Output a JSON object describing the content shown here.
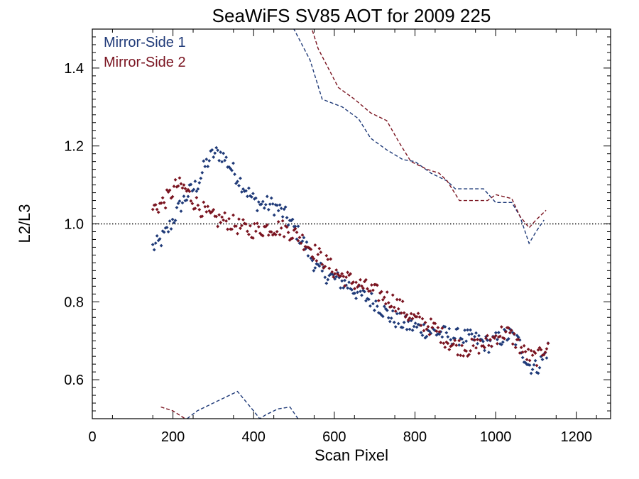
{
  "chart_data": {
    "type": "scatter",
    "title": "SeaWiFS SV85 AOT for 2009 225",
    "xlabel": "Scan Pixel",
    "ylabel": "L2/L3",
    "xlim": [
      0,
      1285
    ],
    "ylim": [
      0.5,
      1.5
    ],
    "x_ticks": [
      0,
      200,
      400,
      600,
      800,
      1000,
      1200
    ],
    "y_ticks": [
      0.6,
      0.8,
      1.0,
      1.2,
      1.4
    ],
    "x_tick_labels": [
      "0",
      "200",
      "400",
      "600",
      "800",
      "1000",
      "1200"
    ],
    "y_tick_labels": [
      "0.6",
      "0.8",
      "1.0",
      "1.2",
      "1.4"
    ],
    "reference_line": {
      "y": 1.0,
      "style": "dotted"
    },
    "legend_position": "top-left",
    "series": [
      {
        "name": "Mirror-Side 1",
        "color": "#1f3a78",
        "anchors": [
          [
            150,
            0.94
          ],
          [
            165,
            0.95
          ],
          [
            185,
            0.98
          ],
          [
            200,
            1.01
          ],
          [
            220,
            1.05
          ],
          [
            240,
            1.08
          ],
          [
            260,
            1.1
          ],
          [
            280,
            1.15
          ],
          [
            300,
            1.18
          ],
          [
            320,
            1.18
          ],
          [
            340,
            1.15
          ],
          [
            360,
            1.12
          ],
          [
            380,
            1.09
          ],
          [
            400,
            1.06
          ],
          [
            420,
            1.05
          ],
          [
            440,
            1.05
          ],
          [
            460,
            1.04
          ],
          [
            480,
            1.02
          ],
          [
            500,
            0.99
          ],
          [
            520,
            0.96
          ],
          [
            540,
            0.92
          ],
          [
            560,
            0.88
          ],
          [
            580,
            0.87
          ],
          [
            600,
            0.86
          ],
          [
            620,
            0.85
          ],
          [
            640,
            0.84
          ],
          [
            660,
            0.82
          ],
          [
            680,
            0.81
          ],
          [
            700,
            0.8
          ],
          [
            720,
            0.78
          ],
          [
            740,
            0.76
          ],
          [
            760,
            0.75
          ],
          [
            780,
            0.74
          ],
          [
            800,
            0.735
          ],
          [
            820,
            0.73
          ],
          [
            840,
            0.725
          ],
          [
            860,
            0.72
          ],
          [
            880,
            0.715
          ],
          [
            900,
            0.71
          ],
          [
            920,
            0.71
          ],
          [
            940,
            0.705
          ],
          [
            960,
            0.7
          ],
          [
            980,
            0.69
          ],
          [
            1000,
            0.7
          ],
          [
            1020,
            0.71
          ],
          [
            1040,
            0.715
          ],
          [
            1060,
            0.69
          ],
          [
            1080,
            0.64
          ],
          [
            1100,
            0.63
          ],
          [
            1115,
            0.65
          ],
          [
            1130,
            0.68
          ]
        ],
        "upper_dashed": [
          [
            460,
            1.58
          ],
          [
            500,
            1.5
          ],
          [
            540,
            1.42
          ],
          [
            570,
            1.32
          ],
          [
            620,
            1.3
          ],
          [
            660,
            1.27
          ],
          [
            690,
            1.22
          ],
          [
            730,
            1.19
          ],
          [
            770,
            1.165
          ],
          [
            800,
            1.16
          ],
          [
            840,
            1.13
          ],
          [
            880,
            1.11
          ],
          [
            900,
            1.09
          ],
          [
            940,
            1.09
          ],
          [
            970,
            1.09
          ],
          [
            1000,
            1.055
          ],
          [
            1040,
            1.055
          ],
          [
            1060,
            1.02
          ],
          [
            1083,
            0.95
          ],
          [
            1100,
            0.98
          ],
          [
            1120,
            1.01
          ]
        ],
        "lower_dashed": [
          [
            235,
            0.5
          ],
          [
            260,
            0.52
          ],
          [
            300,
            0.54
          ],
          [
            360,
            0.57
          ],
          [
            400,
            0.52
          ],
          [
            415,
            0.5
          ],
          [
            430,
            0.51
          ],
          [
            460,
            0.525
          ],
          [
            490,
            0.53
          ],
          [
            510,
            0.5
          ]
        ]
      },
      {
        "name": "Mirror-Side 2",
        "color": "#7a1420",
        "anchors": [
          [
            150,
            1.04
          ],
          [
            170,
            1.05
          ],
          [
            190,
            1.07
          ],
          [
            210,
            1.1
          ],
          [
            230,
            1.09
          ],
          [
            250,
            1.06
          ],
          [
            270,
            1.04
          ],
          [
            290,
            1.02
          ],
          [
            310,
            1.01
          ],
          [
            330,
            1.01
          ],
          [
            350,
            1.0
          ],
          [
            370,
            0.99
          ],
          [
            390,
            0.985
          ],
          [
            410,
            0.985
          ],
          [
            430,
            0.99
          ],
          [
            450,
            0.99
          ],
          [
            470,
            0.99
          ],
          [
            490,
            0.98
          ],
          [
            510,
            0.97
          ],
          [
            530,
            0.95
          ],
          [
            550,
            0.93
          ],
          [
            570,
            0.91
          ],
          [
            590,
            0.89
          ],
          [
            610,
            0.87
          ],
          [
            630,
            0.86
          ],
          [
            650,
            0.85
          ],
          [
            670,
            0.84
          ],
          [
            690,
            0.83
          ],
          [
            710,
            0.82
          ],
          [
            730,
            0.81
          ],
          [
            750,
            0.8
          ],
          [
            770,
            0.78
          ],
          [
            790,
            0.76
          ],
          [
            810,
            0.75
          ],
          [
            830,
            0.74
          ],
          [
            850,
            0.73
          ],
          [
            870,
            0.71
          ],
          [
            890,
            0.69
          ],
          [
            910,
            0.685
          ],
          [
            930,
            0.68
          ],
          [
            950,
            0.685
          ],
          [
            970,
            0.69
          ],
          [
            990,
            0.7
          ],
          [
            1010,
            0.72
          ],
          [
            1030,
            0.72
          ],
          [
            1050,
            0.7
          ],
          [
            1070,
            0.67
          ],
          [
            1090,
            0.655
          ],
          [
            1110,
            0.66
          ],
          [
            1130,
            0.7
          ]
        ],
        "upper_dashed": [
          [
            520,
            1.58
          ],
          [
            560,
            1.45
          ],
          [
            610,
            1.35
          ],
          [
            650,
            1.32
          ],
          [
            690,
            1.285
          ],
          [
            730,
            1.265
          ],
          [
            760,
            1.21
          ],
          [
            790,
            1.16
          ],
          [
            830,
            1.14
          ],
          [
            860,
            1.13
          ],
          [
            880,
            1.11
          ],
          [
            910,
            1.06
          ],
          [
            950,
            1.06
          ],
          [
            980,
            1.06
          ],
          [
            1000,
            1.075
          ],
          [
            1040,
            1.065
          ],
          [
            1060,
            1.02
          ],
          [
            1083,
            0.99
          ],
          [
            1100,
            1.01
          ],
          [
            1125,
            1.035
          ]
        ],
        "lower_dashed": [
          [
            170,
            0.53
          ],
          [
            200,
            0.52
          ],
          [
            230,
            0.5
          ]
        ]
      }
    ]
  }
}
